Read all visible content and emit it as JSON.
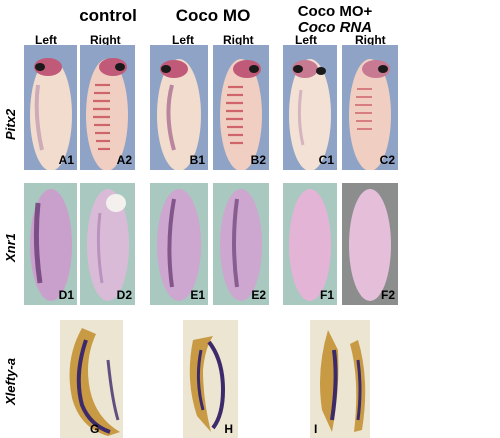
{
  "groups": {
    "control": "control",
    "coco_mo": "Coco MO",
    "coco_mo_rna_line1": "Coco MO+",
    "coco_mo_rna_line2": "Coco RNA"
  },
  "sides": {
    "left": "Left",
    "right": "Right"
  },
  "rows": {
    "pitx2": "Pitx2",
    "xnr1": "Xnr1",
    "xlefty": "Xlefty-a"
  },
  "panels": {
    "A1": "A1",
    "A2": "A2",
    "B1": "B1",
    "B2": "B2",
    "C1": "C1",
    "C2": "C2",
    "D1": "D1",
    "D2": "D2",
    "E1": "E1",
    "E2": "E2",
    "F1": "F1",
    "F2": "F2",
    "G": "G",
    "H": "H",
    "I": "I"
  },
  "colors": {
    "bg_pitx2": "#8fa3c6",
    "bg_xnr1": "#a8c8c0",
    "bg_xlefty": "#ece5d2",
    "embryo_pale": "#f1dccd",
    "embryo_purple": "#c9a0cc",
    "stain_purple": "#5a2b66",
    "tan": "#c89a44"
  }
}
